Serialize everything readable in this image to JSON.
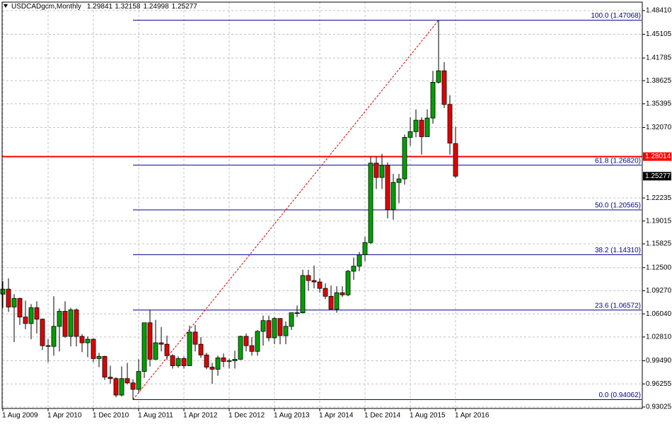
{
  "chart_data": {
    "type": "candlestick",
    "title": "USDCADgcm,Monthly",
    "categories": [
      "1 Aug 2009",
      null,
      null,
      null,
      null,
      null,
      null,
      null,
      "1 Apr 2010",
      null,
      null,
      null,
      null,
      null,
      null,
      null,
      "1 Dec 2010",
      null,
      null,
      null,
      null,
      null,
      null,
      null,
      "1 Aug 2011",
      null,
      null,
      null,
      null,
      null,
      null,
      null,
      "1 Apr 2012",
      null,
      null,
      null,
      null,
      null,
      null,
      null,
      "1 Dec 2012",
      null,
      null,
      null,
      null,
      null,
      null,
      null,
      "1 Aug 2013",
      null,
      null,
      null,
      null,
      null,
      null,
      null,
      "1 Apr 2014",
      null,
      null,
      null,
      null,
      null,
      null,
      null,
      "1 Dec 2014",
      null,
      null,
      null,
      null,
      null,
      null,
      null,
      "1 Aug 2015",
      null,
      null,
      null,
      null,
      null,
      null,
      null,
      "1 Apr 2016"
    ],
    "open": [
      1.088,
      1.095,
      1.07,
      1.082,
      1.056,
      1.047,
      1.069,
      1.053,
      1.016,
      1.015,
      1.043,
      1.064,
      1.029,
      1.066,
      1.029,
      1.02,
      1.025,
      0.998,
      1.001,
      0.972,
      0.97,
      0.947,
      0.97,
      0.964,
      0.955,
      0.98,
      1.048,
      0.997,
      1.02,
      1.018,
      1.002,
      0.988,
      0.998,
      0.988,
      1.035,
      1.018,
      1.003,
      0.986,
      0.983,
      0.999,
      0.994,
      0.995,
      0.997,
      1.029,
      1.016,
      1.008,
      1.036,
      1.051,
      1.027,
      1.054,
      1.03,
      1.043,
      1.062,
      1.062,
      1.114,
      1.107,
      1.105,
      1.096,
      1.085,
      1.067,
      1.09,
      1.087,
      1.12,
      1.127,
      1.143,
      1.16,
      1.271,
      1.251,
      1.268,
      1.206,
      1.244,
      1.249,
      1.307,
      1.315,
      1.331,
      1.308,
      1.334,
      1.384,
      1.4,
      1.353,
      1.29841
    ],
    "high": [
      1.106,
      1.11,
      1.088,
      1.083,
      1.079,
      1.074,
      1.078,
      1.054,
      1.025,
      1.085,
      1.068,
      1.078,
      1.069,
      1.068,
      1.032,
      1.029,
      1.026,
      1.006,
      1.002,
      0.988,
      0.972,
      0.987,
      0.992,
      0.969,
      0.997,
      1.048,
      1.066,
      1.052,
      1.042,
      1.03,
      1.004,
      1.001,
      1.001,
      1.044,
      1.045,
      1.028,
      1.006,
      0.992,
      1.002,
      1.005,
      0.998,
      1.009,
      1.03,
      1.033,
      1.028,
      1.038,
      1.058,
      1.058,
      1.056,
      1.054,
      1.05,
      1.062,
      1.072,
      1.122,
      1.122,
      1.128,
      1.11,
      1.103,
      1.1,
      1.099,
      1.099,
      1.122,
      1.139,
      1.147,
      1.168,
      1.28,
      1.28,
      1.284,
      1.272,
      1.256,
      1.256,
      1.311,
      1.335,
      1.346,
      1.335,
      1.346,
      1.4,
      1.47068,
      1.412,
      1.366,
      1.32158
    ],
    "low": [
      1.069,
      1.063,
      1.021,
      1.045,
      1.039,
      1.025,
      1.033,
      1.01,
      0.993,
      1.002,
      1.008,
      1.027,
      1.015,
      1.015,
      1.007,
      1.0,
      0.993,
      0.986,
      0.968,
      0.963,
      0.944,
      0.945,
      0.962,
      0.94062,
      0.95,
      0.971,
      0.987,
      0.996,
      1.008,
      0.996,
      0.984,
      0.985,
      0.984,
      0.988,
      1.008,
      0.999,
      0.983,
      0.963,
      0.974,
      0.986,
      0.984,
      0.984,
      0.996,
      1.008,
      1.002,
      1.002,
      1.016,
      1.022,
      1.018,
      1.018,
      1.018,
      1.038,
      1.056,
      1.061,
      1.093,
      1.096,
      1.09,
      1.081,
      1.067,
      1.062,
      1.084,
      1.085,
      1.108,
      1.12,
      1.134,
      1.158,
      1.235,
      1.235,
      1.194,
      1.192,
      1.215,
      1.241,
      1.295,
      1.307,
      1.283,
      1.308,
      1.326,
      1.382,
      1.348,
      1.283,
      1.24998
    ],
    "close": [
      1.095,
      1.07,
      1.082,
      1.056,
      1.047,
      1.069,
      1.053,
      1.016,
      1.015,
      1.043,
      1.064,
      1.029,
      1.066,
      1.029,
      1.02,
      1.025,
      0.998,
      1.001,
      0.972,
      0.97,
      0.947,
      0.97,
      0.964,
      0.955,
      0.98,
      1.048,
      0.997,
      1.02,
      1.018,
      1.002,
      0.988,
      0.998,
      0.988,
      1.035,
      1.018,
      1.003,
      0.986,
      0.983,
      0.999,
      0.994,
      0.995,
      0.997,
      1.029,
      1.016,
      1.008,
      1.036,
      1.051,
      1.027,
      1.054,
      1.03,
      1.043,
      1.062,
      1.062,
      1.114,
      1.107,
      1.105,
      1.096,
      1.085,
      1.067,
      1.09,
      1.087,
      1.12,
      1.127,
      1.143,
      1.16,
      1.271,
      1.251,
      1.268,
      1.206,
      1.244,
      1.249,
      1.307,
      1.315,
      1.331,
      1.308,
      1.334,
      1.384,
      1.4,
      1.353,
      1.299,
      1.25277
    ],
    "up_color": "#00a000",
    "down_color": "#e00000",
    "ylim": [
      0.92828,
      1.49595
    ],
    "yticks": [
      {
        "value": 1.4841,
        "label": "1.48410"
      },
      1.45105,
      1.41785,
      1.38625,
      1.35395,
      {
        "value": 1.3207,
        "label": "1.32070"
      },
      1.22235,
      1.19015,
      1.15825,
      {
        "value": 1.125,
        "label": "1.12500"
      },
      {
        "value": 1.0927,
        "label": "1.09270"
      },
      {
        "value": 1.0604,
        "label": "1.06040"
      },
      {
        "value": 1.0281,
        "label": "1.02810"
      },
      {
        "value": 0.9949,
        "label": "0.99490"
      },
      0.96255,
      0.93025
    ],
    "grid": true,
    "fibonacci": {
      "color": "#00008b",
      "trend_color": "#d00000",
      "levels": [
        {
          "value": 0.94062,
          "label": "0.0 (0.94062)"
        },
        {
          "value": 1.06572,
          "label": "23.6 (1.06572)"
        },
        {
          "value": 1.1431,
          "label": "38.2 (1.14310)"
        },
        {
          "value": 1.20565,
          "label": "50.0 (1.20565)"
        },
        {
          "value": 1.2682,
          "label": "61.8 (1.26820)"
        },
        {
          "value": 1.47068,
          "label": "100.0 (1.47068)"
        }
      ]
    },
    "hline": {
      "value": 1.28014,
      "color": "#ff0000"
    }
  }
}
